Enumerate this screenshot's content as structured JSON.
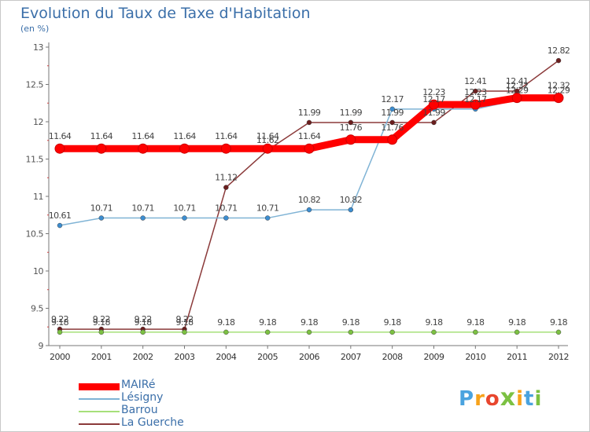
{
  "title": "Evolution du Taux de Taxe d'Habitation",
  "subtitle": "(en %)",
  "logo_text": "Proxiti",
  "logo_letters": [
    "P",
    "r",
    "o",
    "x",
    "i",
    "t",
    "i"
  ],
  "logo_colors": [
    "#4aa3df",
    "#f7a21b",
    "#e8462e",
    "#7cc142",
    "#f7a21b",
    "#4aa3df",
    "#7cc142"
  ],
  "chart_data": {
    "type": "line",
    "title": "Evolution du Taux de Taxe d'Habitation",
    "ylabel": "(en %)",
    "ylim": [
      9,
      13
    ],
    "yticks": [
      "9",
      "9.5",
      "10",
      "10.5",
      "11",
      "11.5",
      "12",
      "12.5",
      "13"
    ],
    "categories": [
      "2000",
      "2001",
      "2002",
      "2003",
      "2004",
      "2005",
      "2006",
      "2007",
      "2008",
      "2009",
      "2010",
      "2011",
      "2012"
    ],
    "grid": false,
    "legend_position": "bottom-left",
    "series": [
      {
        "name": "MAIRé",
        "color": "#ff0000",
        "marker": "#ff0000",
        "emphasis": true,
        "values": [
          11.64,
          11.64,
          11.64,
          11.64,
          11.64,
          11.64,
          11.64,
          11.76,
          11.76,
          12.23,
          12.23,
          12.32,
          12.32
        ],
        "labels": [
          "11.64",
          "11.64",
          "11.64",
          "11.64",
          "11.64",
          "11.64",
          "11.64",
          "11.76",
          "11.76",
          "12.23",
          "12.23",
          "12.32",
          "12.32"
        ]
      },
      {
        "name": "Lésigny",
        "color": "#7fb3d5",
        "marker": "#3c8dd0",
        "values": [
          10.61,
          10.71,
          10.71,
          10.71,
          10.71,
          10.71,
          10.82,
          10.82,
          12.17,
          12.17,
          12.17,
          12.29,
          12.29
        ],
        "labels": [
          "10.61",
          "10.71",
          "10.71",
          "10.71",
          "10.71",
          "10.71",
          "10.82",
          "10.82",
          "12.17",
          "12.17",
          "12.17",
          "12.29",
          "12.29"
        ]
      },
      {
        "name": "Barrou",
        "color": "#a6e07a",
        "marker": "#7cc142",
        "values": [
          9.18,
          9.18,
          9.18,
          9.18,
          9.18,
          9.18,
          9.18,
          9.18,
          9.18,
          9.18,
          9.18,
          9.18,
          9.18
        ],
        "labels": [
          "9.18",
          "9.18",
          "9.18",
          "9.18",
          "9.18",
          "9.18",
          "9.18",
          "9.18",
          "9.18",
          "9.18",
          "9.18",
          "9.18",
          "9.18"
        ]
      },
      {
        "name": "La Guerche",
        "color": "#8b3a3a",
        "marker": "#6b1e1e",
        "values": [
          9.22,
          9.22,
          9.22,
          9.22,
          11.12,
          11.62,
          11.99,
          11.99,
          11.99,
          11.99,
          12.41,
          12.41,
          12.82
        ],
        "labels": [
          "9.22",
          "9.22",
          "9.22",
          "9.22",
          "11.12",
          "11.62",
          "11.99",
          "11.99",
          "11.99",
          "11.99",
          "12.41",
          "12.41",
          "12.82"
        ]
      }
    ]
  }
}
